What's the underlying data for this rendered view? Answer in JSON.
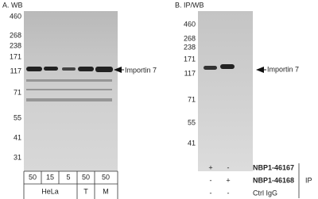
{
  "panel_a": {
    "title": "A. WB",
    "markers": [
      "460",
      "268",
      "238",
      "171",
      "117",
      "71",
      "55",
      "41",
      "31"
    ],
    "band_label": "Importin 7",
    "lane_amounts": [
      "50",
      "15",
      "5",
      "50",
      "50"
    ],
    "cell_lines": [
      "HeLa",
      "T",
      "M"
    ]
  },
  "panel_b": {
    "title": "B. IP/WB",
    "markers": [
      "460",
      "268",
      "238",
      "171",
      "117",
      "71",
      "55",
      "41"
    ],
    "band_label": "Importin 7",
    "ip_rows": [
      {
        "signs": [
          "+",
          "-"
        ],
        "label": "NBP1-46167"
      },
      {
        "signs": [
          "-",
          "+"
        ],
        "label": "NBP1-46168"
      },
      {
        "signs": [
          "-",
          "-"
        ],
        "label": "Ctrl IgG"
      }
    ],
    "ip_label": "IP"
  }
}
